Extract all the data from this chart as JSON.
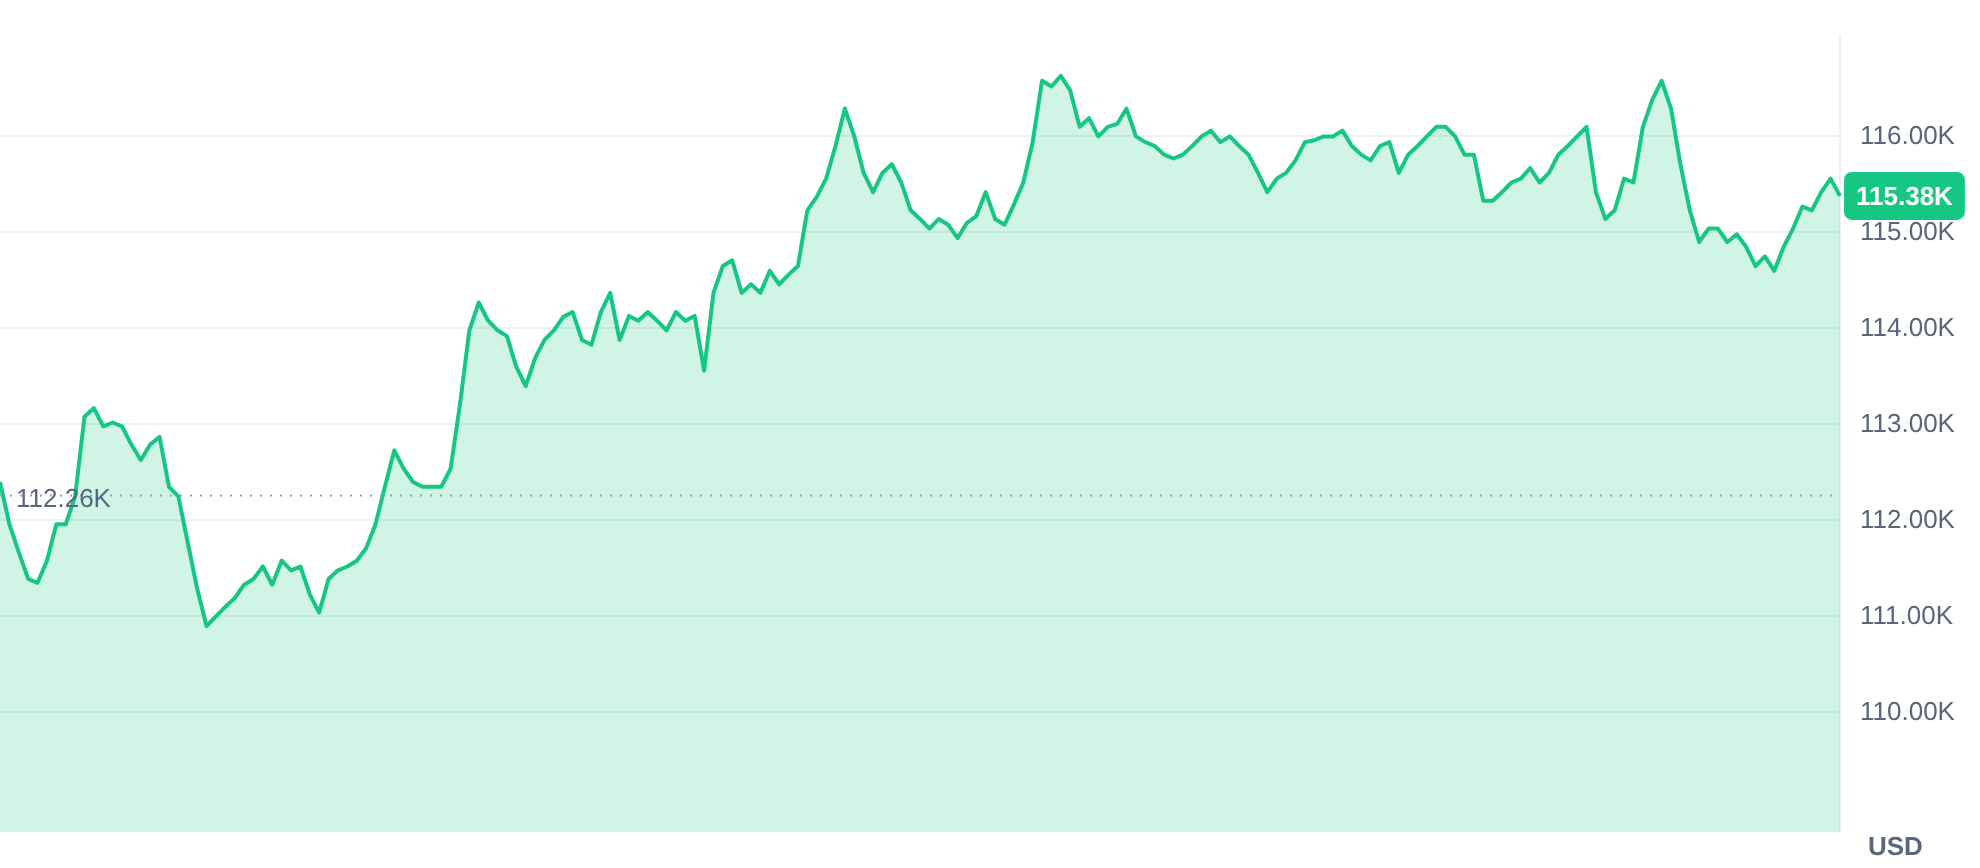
{
  "chart_data": {
    "type": "area",
    "ylabel": "USD",
    "categories": [
      null,
      null,
      null,
      null,
      null,
      null,
      null,
      null,
      null,
      null,
      null,
      null,
      null,
      null,
      null,
      null,
      null,
      null,
      null,
      null,
      null,
      null,
      null,
      null,
      null,
      null,
      null,
      null,
      null,
      null,
      null,
      null,
      null,
      null,
      null,
      null,
      null,
      null,
      null,
      null,
      null,
      null,
      null,
      null,
      null,
      null,
      null,
      null,
      null,
      null,
      null,
      null,
      null,
      null,
      null,
      null,
      null,
      null,
      null,
      null,
      null,
      null,
      null,
      null,
      null,
      null,
      null,
      null,
      null,
      null,
      null,
      null,
      null,
      null,
      null,
      null,
      null,
      null,
      null,
      null,
      null,
      null,
      null,
      null,
      null,
      null,
      null,
      null,
      null,
      null,
      null,
      null,
      null,
      null,
      null,
      null,
      null,
      null,
      null,
      null,
      null,
      null,
      null,
      null,
      null,
      null,
      null,
      null,
      null,
      null,
      null,
      null,
      null,
      null,
      null,
      null,
      null,
      null,
      null,
      null,
      null,
      null,
      null,
      null,
      null,
      null,
      null,
      null,
      null,
      null,
      null,
      null,
      null,
      null,
      null,
      null,
      null,
      null,
      null,
      null,
      null,
      null,
      null,
      null,
      null,
      null,
      null,
      null,
      null,
      null,
      null,
      null,
      null,
      null,
      null,
      null,
      null,
      null,
      null,
      null,
      null,
      null,
      null,
      null,
      null,
      null,
      null,
      null,
      null,
      null,
      null,
      null,
      null,
      null,
      null,
      null,
      null,
      null,
      null,
      null,
      null,
      null,
      null,
      null,
      null,
      null,
      null,
      null,
      null,
      null,
      null,
      null,
      null,
      null,
      null,
      null,
      null
    ],
    "series": [
      {
        "color": "#16c784",
        "values": [
          112400,
          111960,
          111670,
          111390,
          111350,
          111580,
          111960,
          111960,
          112250,
          113080,
          113170,
          112980,
          113020,
          112980,
          112790,
          112630,
          112790,
          112870,
          112350,
          112250,
          111770,
          111290,
          110900,
          111000,
          111100,
          111190,
          111330,
          111390,
          111520,
          111330,
          111580,
          111480,
          111520,
          111230,
          111040,
          111390,
          111480,
          111520,
          111580,
          111710,
          111960,
          112350,
          112730,
          112540,
          112400,
          112350,
          112350,
          112350,
          112540,
          113210,
          113980,
          114270,
          114080,
          113980,
          113920,
          113600,
          113400,
          113690,
          113880,
          113980,
          114120,
          114170,
          113880,
          113830,
          114170,
          114370,
          113880,
          114130,
          114080,
          114170,
          114080,
          113980,
          114170,
          114080,
          114130,
          113560,
          114370,
          114650,
          114710,
          114370,
          114460,
          114370,
          114600,
          114460,
          114560,
          114650,
          115230,
          115370,
          115560,
          115900,
          116290,
          116000,
          115620,
          115420,
          115620,
          115710,
          115520,
          115230,
          115140,
          115040,
          115140,
          115080,
          114940,
          115100,
          115170,
          115420,
          115140,
          115080,
          115290,
          115520,
          115940,
          116580,
          116520,
          116630,
          116480,
          116100,
          116190,
          116000,
          116100,
          116130,
          116290,
          116000,
          115940,
          115900,
          115810,
          115770,
          115810,
          115900,
          116000,
          116060,
          115940,
          116000,
          115900,
          115810,
          115620,
          115420,
          115560,
          115620,
          115750,
          115940,
          115960,
          116000,
          116000,
          116060,
          115900,
          115810,
          115750,
          115900,
          115940,
          115620,
          115810,
          115900,
          116000,
          116100,
          116100,
          116000,
          115810,
          115810,
          115330,
          115330,
          115420,
          115520,
          115560,
          115670,
          115520,
          115620,
          115810,
          115900,
          116000,
          116100,
          115420,
          115140,
          115230,
          115560,
          115520,
          116100,
          116380,
          116580,
          116290,
          115710,
          115230,
          114900,
          115040,
          115040,
          114900,
          114980,
          114850,
          114650,
          114750,
          114600,
          114850,
          115040,
          115270,
          115230,
          115420,
          115560,
          115380
        ]
      }
    ],
    "ylim": [
      108750,
      117050
    ],
    "yticks": [
      {
        "value": 110000,
        "label": "110.00K"
      },
      {
        "value": 111000,
        "label": "111.00K"
      },
      {
        "value": 112000,
        "label": "112.00K"
      },
      {
        "value": 113000,
        "label": "113.00K"
      },
      {
        "value": 114000,
        "label": "114.00K"
      },
      {
        "value": 115000,
        "label": "115.00K"
      },
      {
        "value": 116000,
        "label": "116.00K"
      }
    ],
    "ref_lines": [
      {
        "axis": "y",
        "value": 112260,
        "label": "112.26K",
        "color": "#9aa1ad",
        "line_style": "dotted"
      }
    ],
    "annotations": [
      "115.38K"
    ],
    "grid": "y",
    "legend": false,
    "marker": "none"
  }
}
